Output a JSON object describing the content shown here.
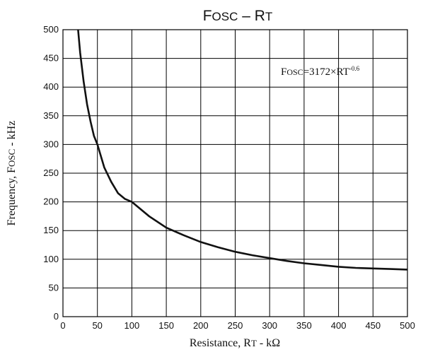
{
  "chart_data": {
    "type": "line",
    "title": {
      "main1": "F",
      "sub1": "OSC",
      "dash": " – ",
      "main2": "R",
      "sub2": "T"
    },
    "xlabel": {
      "pre": "Resistance, R",
      "sub": "T",
      "post": " - kΩ"
    },
    "ylabel": {
      "pre": "Frequency, F",
      "sub": "OSC",
      "post": " - kHz"
    },
    "annotation": {
      "f": "F",
      "osc": "OSC",
      "eq": "=3172×RT",
      "exp": "-0.6"
    },
    "xlim": [
      0,
      500
    ],
    "ylim": [
      0,
      500
    ],
    "xticks": [
      0,
      50,
      100,
      150,
      200,
      250,
      300,
      350,
      400,
      450,
      500
    ],
    "yticks": [
      0,
      50,
      100,
      150,
      200,
      250,
      300,
      350,
      400,
      450,
      500
    ],
    "grid": true,
    "series": [
      {
        "x": [
          22,
          25,
          30,
          35,
          40,
          45,
          50,
          60,
          70,
          80,
          90,
          100,
          125,
          150,
          175,
          200,
          225,
          250,
          275,
          300,
          325,
          350,
          375,
          400,
          425,
          450,
          475,
          500
        ],
        "y": [
          500,
          460,
          410,
          370,
          340,
          315,
          300,
          260,
          235,
          215,
          205,
          200,
          175,
          155,
          142,
          130,
          121,
          113,
          107,
          102,
          97,
          93,
          90,
          87,
          85,
          84,
          83,
          82
        ]
      }
    ]
  }
}
